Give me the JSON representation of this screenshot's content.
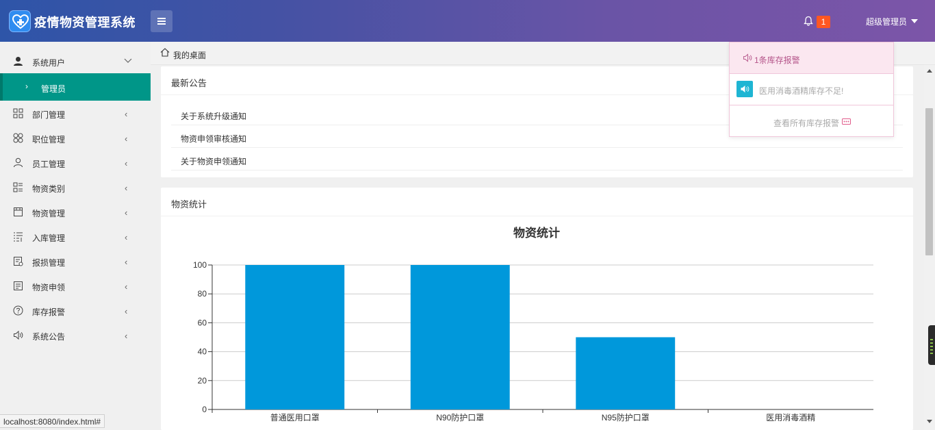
{
  "header": {
    "app_title": "疫情物资管理系统",
    "notification_count": "1",
    "user_label": "超级管理员"
  },
  "sidebar": {
    "items": [
      {
        "label": "系统用户",
        "icon": "user-icon",
        "expanded": true
      },
      {
        "label": "部门管理",
        "icon": "grid-icon"
      },
      {
        "label": "职位管理",
        "icon": "clover-icon"
      },
      {
        "label": "员工管理",
        "icon": "person-icon"
      },
      {
        "label": "物资类别",
        "icon": "list-icon"
      },
      {
        "label": "物资管理",
        "icon": "store-icon"
      },
      {
        "label": "入库管理",
        "icon": "list-add-icon"
      },
      {
        "label": "报损管理",
        "icon": "report-icon"
      },
      {
        "label": "物资申领",
        "icon": "form-icon"
      },
      {
        "label": "库存报警",
        "icon": "question-icon"
      },
      {
        "label": "系统公告",
        "icon": "speaker-icon"
      }
    ],
    "active_sub_label": "管理员"
  },
  "breadcrumb": {
    "label": "我的桌面"
  },
  "notices": {
    "title": "最新公告",
    "items": [
      "关于系统升级通知",
      "物资申领审核通知",
      "关于物资申领通知"
    ]
  },
  "stats": {
    "title": "物资统计"
  },
  "chart_data": {
    "type": "bar",
    "title": "物资统计",
    "categories": [
      "普通医用口罩",
      "N90防护口罩",
      "N95防护口罩",
      "医用消毒酒精"
    ],
    "values": [
      100,
      100,
      50,
      0
    ],
    "yticks": [
      0,
      20,
      40,
      60,
      80,
      100
    ],
    "ylim": [
      0,
      100
    ],
    "bar_color": "#0098db",
    "grid": true
  },
  "dropdown": {
    "header": "1条库存报警",
    "item": "医用消毒酒精库存不足!",
    "footer": "查看所有库存报警"
  },
  "status_bar": {
    "url": "localhost:8080/index.html#"
  }
}
